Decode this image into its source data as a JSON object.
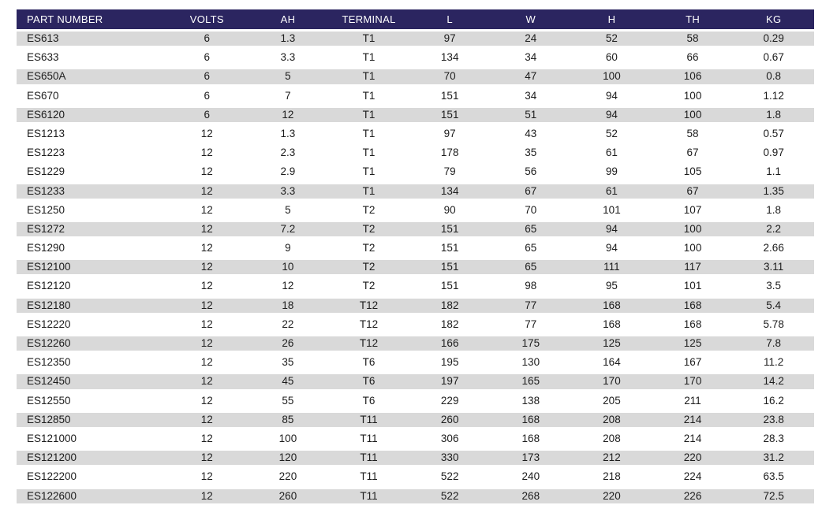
{
  "table": {
    "columns": [
      "PART NUMBER",
      "VOLTS",
      "AH",
      "TERMINAL",
      "L",
      "W",
      "H",
      "TH",
      "KG"
    ],
    "highlighted_part_number": "ES1223",
    "rows": [
      [
        "ES613",
        "6",
        "1.3",
        "T1",
        "97",
        "24",
        "52",
        "58",
        "0.29"
      ],
      [
        "ES633",
        "6",
        "3.3",
        "T1",
        "134",
        "34",
        "60",
        "66",
        "0.67"
      ],
      [
        "ES650A",
        "6",
        "5",
        "T1",
        "70",
        "47",
        "100",
        "106",
        "0.8"
      ],
      [
        "ES670",
        "6",
        "7",
        "T1",
        "151",
        "34",
        "94",
        "100",
        "1.12"
      ],
      [
        "ES6120",
        "6",
        "12",
        "T1",
        "151",
        "51",
        "94",
        "100",
        "1.8"
      ],
      [
        "ES1213",
        "12",
        "1.3",
        "T1",
        "97",
        "43",
        "52",
        "58",
        "0.57"
      ],
      [
        "ES1223",
        "12",
        "2.3",
        "T1",
        "178",
        "35",
        "61",
        "67",
        "0.97"
      ],
      [
        "ES1229",
        "12",
        "2.9",
        "T1",
        "79",
        "56",
        "99",
        "105",
        "1.1"
      ],
      [
        "ES1233",
        "12",
        "3.3",
        "T1",
        "134",
        "67",
        "61",
        "67",
        "1.35"
      ],
      [
        "ES1250",
        "12",
        "5",
        "T2",
        "90",
        "70",
        "101",
        "107",
        "1.8"
      ],
      [
        "ES1272",
        "12",
        "7.2",
        "T2",
        "151",
        "65",
        "94",
        "100",
        "2.2"
      ],
      [
        "ES1290",
        "12",
        "9",
        "T2",
        "151",
        "65",
        "94",
        "100",
        "2.66"
      ],
      [
        "ES12100",
        "12",
        "10",
        "T2",
        "151",
        "65",
        "111",
        "117",
        "3.11"
      ],
      [
        "ES12120",
        "12",
        "12",
        "T2",
        "151",
        "98",
        "95",
        "101",
        "3.5"
      ],
      [
        "ES12180",
        "12",
        "18",
        "T12",
        "182",
        "77",
        "168",
        "168",
        "5.4"
      ],
      [
        "ES12220",
        "12",
        "22",
        "T12",
        "182",
        "77",
        "168",
        "168",
        "5.78"
      ],
      [
        "ES12260",
        "12",
        "26",
        "T12",
        "166",
        "175",
        "125",
        "125",
        "7.8"
      ],
      [
        "ES12350",
        "12",
        "35",
        "T6",
        "195",
        "130",
        "164",
        "167",
        "11.2"
      ],
      [
        "ES12450",
        "12",
        "45",
        "T6",
        "197",
        "165",
        "170",
        "170",
        "14.2"
      ],
      [
        "ES12550",
        "12",
        "55",
        "T6",
        "229",
        "138",
        "205",
        "211",
        "16.2"
      ],
      [
        "ES12850",
        "12",
        "85",
        "T11",
        "260",
        "168",
        "208",
        "214",
        "23.8"
      ],
      [
        "ES121000",
        "12",
        "100",
        "T11",
        "306",
        "168",
        "208",
        "214",
        "28.3"
      ],
      [
        "ES121200",
        "12",
        "120",
        "T11",
        "330",
        "173",
        "212",
        "220",
        "31.2"
      ],
      [
        "ES122200",
        "12",
        "220",
        "T11",
        "522",
        "240",
        "218",
        "224",
        "63.5"
      ],
      [
        "ES122600",
        "12",
        "260",
        "T11",
        "522",
        "268",
        "220",
        "226",
        "72.5"
      ]
    ]
  },
  "colors": {
    "header_bg": "#2b2560",
    "header_text": "#ffffff",
    "row_alt_bg": "#d9d9d9",
    "row_bg": "#ffffff",
    "body_text": "#1c1c1c",
    "highlight_bg": "#d7d414",
    "highlight_border": "#b4b200"
  }
}
